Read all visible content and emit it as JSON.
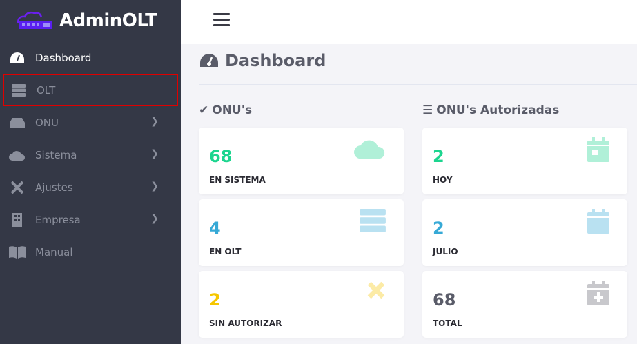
{
  "brand": {
    "name": "AdminOLT"
  },
  "sidebar": {
    "items": [
      {
        "label": "Dashboard",
        "icon": "tachometer-icon",
        "active": true
      },
      {
        "label": "OLT",
        "icon": "server-icon",
        "selected": true
      },
      {
        "label": "ONU",
        "icon": "hdd-icon",
        "chevron": true
      },
      {
        "label": "Sistema",
        "icon": "cloud-icon",
        "chevron": true
      },
      {
        "label": "Ajustes",
        "icon": "tools-icon",
        "chevron": true
      },
      {
        "label": "Empresa",
        "icon": "building-icon",
        "chevron": true
      },
      {
        "label": "Manual",
        "icon": "book-icon"
      }
    ]
  },
  "main": {
    "title": "Dashboard",
    "onus": {
      "title": "ONU's",
      "cards": [
        {
          "value": "68",
          "label": "EN SISTEMA",
          "color": "#1cd58f",
          "icon": "cloud-icon"
        },
        {
          "value": "4",
          "label": "EN OLT",
          "color": "#36a9d6",
          "icon": "server-icon"
        },
        {
          "value": "2",
          "label": "SIN AUTORIZAR",
          "color": "#f6c700",
          "icon": "times-icon"
        }
      ]
    },
    "autorizadas": {
      "title": "ONU's Autorizadas",
      "cards": [
        {
          "value": "2",
          "label": "HOY",
          "color": "#1cd58f",
          "icon": "calendar-day-icon"
        },
        {
          "value": "2",
          "label": "JULIO",
          "color": "#36a9d6",
          "icon": "calendar-icon"
        },
        {
          "value": "68",
          "label": "TOTAL",
          "color": "#5a5c69",
          "icon": "calendar-plus-icon"
        }
      ]
    }
  }
}
